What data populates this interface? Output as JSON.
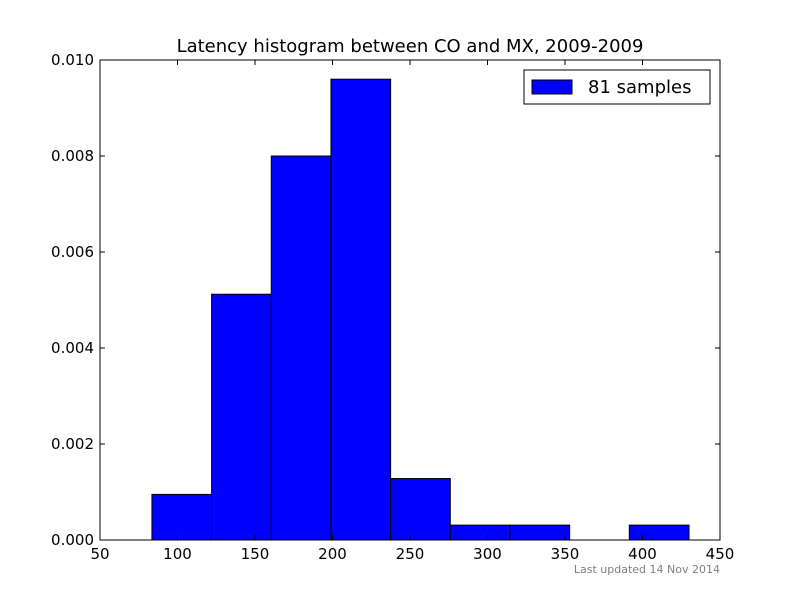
{
  "chart_data": {
    "type": "bar",
    "title": "Latency histogram between CO and MX, 2009-2009",
    "xlabel": "",
    "ylabel": "",
    "xlim": [
      50,
      450
    ],
    "ylim": [
      0,
      0.01
    ],
    "x_ticks": [
      50,
      100,
      150,
      200,
      250,
      300,
      350,
      400,
      450
    ],
    "y_ticks": [
      0.0,
      0.002,
      0.004,
      0.006,
      0.008,
      0.01
    ],
    "x_tick_labels": [
      "50",
      "100",
      "150",
      "200",
      "250",
      "300",
      "350",
      "400",
      "450"
    ],
    "y_tick_labels": [
      "0.000",
      "0.002",
      "0.004",
      "0.006",
      "0.008",
      "0.010"
    ],
    "bins": [
      {
        "x0": 83.5,
        "x1": 122.0,
        "value": 0.00095
      },
      {
        "x0": 122.0,
        "x1": 160.5,
        "value": 0.00512
      },
      {
        "x0": 160.5,
        "x1": 199.0,
        "value": 0.008
      },
      {
        "x0": 199.0,
        "x1": 237.5,
        "value": 0.0096
      },
      {
        "x0": 237.5,
        "x1": 276.0,
        "value": 0.00128
      },
      {
        "x0": 276.0,
        "x1": 314.5,
        "value": 0.00031
      },
      {
        "x0": 314.5,
        "x1": 353.0,
        "value": 0.00031
      },
      {
        "x0": 353.0,
        "x1": 391.5,
        "value": 0.0
      },
      {
        "x0": 391.5,
        "x1": 430.0,
        "value": 0.00031
      }
    ],
    "legend": {
      "label": "81 samples",
      "placement": "top-right"
    },
    "grid": false,
    "bar_color": "#0000ff",
    "edge_color": "#000000"
  },
  "footer": {
    "note": "Last updated 14 Nov 2014"
  }
}
